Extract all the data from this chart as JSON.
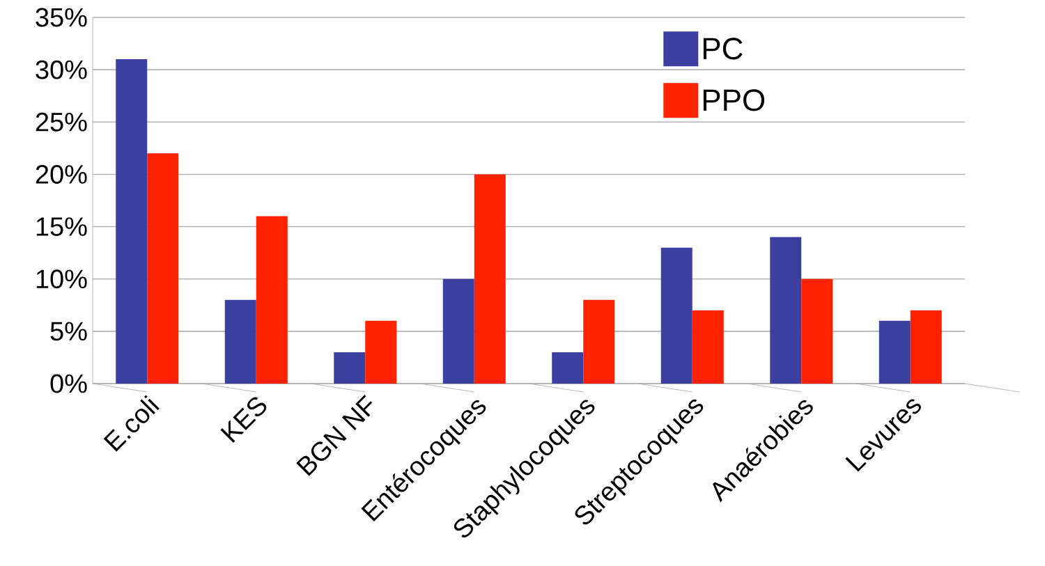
{
  "chart_data": {
    "type": "bar",
    "categories": [
      "E.coli",
      "KES",
      "BGN NF",
      "Entérocoques",
      "Staphylocoques",
      "Streptocoques",
      "Anaérobies",
      "Levures"
    ],
    "series": [
      {
        "name": "PC",
        "color": "#3b3fa0",
        "values": [
          31,
          8,
          3,
          10,
          3,
          13,
          14,
          6
        ]
      },
      {
        "name": "PPO",
        "color": "#ff2200",
        "values": [
          22,
          16,
          6,
          20,
          8,
          7,
          10,
          7
        ]
      }
    ],
    "ylim": [
      0,
      35
    ],
    "yticks": [
      {
        "value": 0,
        "label": "0%"
      },
      {
        "value": 5,
        "label": "5%"
      },
      {
        "value": 10,
        "label": "10%"
      },
      {
        "value": 15,
        "label": "15%"
      },
      {
        "value": 20,
        "label": "20%"
      },
      {
        "value": 25,
        "label": "25%"
      },
      {
        "value": 30,
        "label": "30%"
      },
      {
        "value": 35,
        "label": "35%"
      }
    ],
    "grid": "y",
    "legend": "top right"
  }
}
